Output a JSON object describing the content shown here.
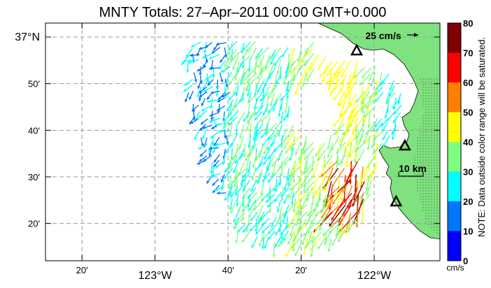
{
  "title": "MNTY Totals: 27–Apr–2011 00:00 GMT+0.000",
  "lat_labels": [
    {
      "text": "37°N",
      "lat": 37.0,
      "major": true
    },
    {
      "text": "50'",
      "lat": 36.8333,
      "major": false
    },
    {
      "text": "40'",
      "lat": 36.6667,
      "major": false
    },
    {
      "text": "30'",
      "lat": 36.5,
      "major": false
    },
    {
      "text": "20'",
      "lat": 36.3333,
      "major": false
    }
  ],
  "lon_labels": [
    {
      "text": "20'",
      "lon": -123.3333,
      "major": false
    },
    {
      "text": "123°W",
      "lon": -123.0,
      "major": true
    },
    {
      "text": "40'",
      "lon": -122.6667,
      "major": false
    },
    {
      "text": "20'",
      "lon": -122.3333,
      "major": false
    },
    {
      "text": "122°W",
      "lon": -122.0,
      "major": true
    }
  ],
  "map": {
    "lon_range": [
      -123.5,
      -121.7
    ],
    "lat_range": [
      36.2,
      37.05
    ],
    "grid": true,
    "land_color": "#7fe27f",
    "stations": [
      {
        "name": "station-north",
        "lon": -122.08,
        "lat": 36.95
      },
      {
        "name": "station-mid",
        "lon": -121.86,
        "lat": 36.61
      },
      {
        "name": "station-south",
        "lon": -121.9,
        "lat": 36.41
      }
    ]
  },
  "scale_arrow": {
    "label": "25 cm/s"
  },
  "scale_bar": {
    "label": "10 km"
  },
  "colorbar": {
    "ticks": [
      "0",
      "10",
      "20",
      "30",
      "40",
      "50",
      "60",
      "70",
      "80"
    ],
    "colors": [
      "#0000ff",
      "#0077ff",
      "#00ffff",
      "#7fff7f",
      "#ffff00",
      "#ff8000",
      "#ff0000",
      "#7f0000"
    ],
    "unit": "cm/s",
    "note": "NOTE: Data outside color range will be saturated."
  }
}
